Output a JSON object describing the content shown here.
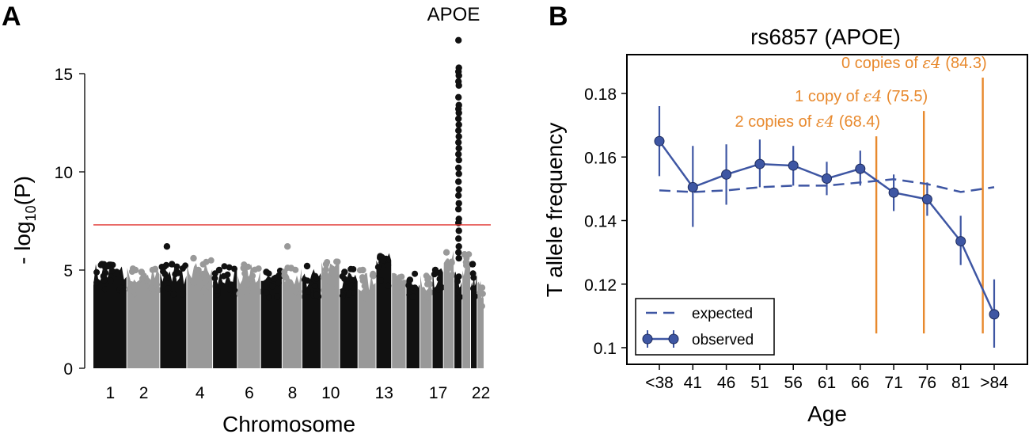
{
  "panels": {
    "a": {
      "letter": "A"
    },
    "b": {
      "letter": "B"
    }
  },
  "chart_data": [
    {
      "type": "scatter",
      "panel": "A",
      "title": "",
      "xlabel": "Chromosome",
      "ylabel": "- log10(P)",
      "ylabel_parts": {
        "prefix": "- log",
        "sub": "10",
        "suffix": "(P)"
      },
      "ylim": [
        0,
        17
      ],
      "yticks": [
        0,
        5,
        10,
        15
      ],
      "xtick_labels": [
        "1",
        "2",
        "4",
        "6",
        "8",
        "10",
        "13",
        "17",
        "22"
      ],
      "significance_threshold": 7.3,
      "colors": {
        "odd": "#111111",
        "even": "#999999",
        "threshold": "#e0322f"
      },
      "chromosomes": [
        {
          "chr": 1,
          "max": 5.4,
          "extra": [
            5.3,
            5.2
          ]
        },
        {
          "chr": 2,
          "max": 5.2,
          "extra": [
            5.0,
            4.9
          ]
        },
        {
          "chr": 3,
          "max": 5.3,
          "extra": [
            6.2,
            5.3,
            4.9
          ]
        },
        {
          "chr": 4,
          "max": 5.5,
          "extra": [
            5.6,
            5.0,
            4.8
          ]
        },
        {
          "chr": 5,
          "max": 5.2,
          "extra": [
            5.0
          ]
        },
        {
          "chr": 6,
          "max": 5.4,
          "extra": [
            5.1
          ]
        },
        {
          "chr": 7,
          "max": 5.0,
          "extra": [
            4.9
          ]
        },
        {
          "chr": 8,
          "max": 5.2,
          "extra": [
            6.2,
            5.1
          ]
        },
        {
          "chr": 9,
          "max": 5.1,
          "extra": [
            5.2
          ]
        },
        {
          "chr": 10,
          "max": 5.5,
          "extra": [
            5.3
          ]
        },
        {
          "chr": 11,
          "max": 5.1,
          "extra": [
            4.9
          ]
        },
        {
          "chr": 12,
          "max": 5.0,
          "extra": [
            5.0
          ]
        },
        {
          "chr": 13,
          "max": 5.9,
          "extra": [
            5.7,
            5.5
          ]
        },
        {
          "chr": 14,
          "max": 5.0,
          "extra": []
        },
        {
          "chr": 15,
          "max": 5.0,
          "extra": [
            4.5
          ]
        },
        {
          "chr": 16,
          "max": 4.9,
          "extra": []
        },
        {
          "chr": 17,
          "max": 5.2,
          "extra": [
            5.0
          ]
        },
        {
          "chr": 18,
          "max": 6.0,
          "extra": [
            5.9,
            5.1
          ]
        },
        {
          "chr": 19,
          "max": 5.0,
          "extra": [
            16.7,
            15.3,
            15.1,
            14.9,
            14.6,
            14.4,
            13.8,
            13.4,
            13.2,
            13.0,
            12.7,
            12.4,
            12.1,
            11.8,
            11.5,
            11.2,
            10.9,
            10.6,
            10.2,
            9.9,
            9.5,
            9.1,
            8.8,
            8.4,
            8.1,
            7.6,
            7.4,
            7.0,
            6.6,
            6.2,
            5.9,
            5.6
          ]
        },
        {
          "chr": 20,
          "max": 5.9,
          "extra": [
            5.8,
            5.4
          ]
        },
        {
          "chr": 21,
          "max": 5.2,
          "extra": [
            5.3
          ]
        },
        {
          "chr": 22,
          "max": 4.5,
          "extra": []
        }
      ],
      "annotation": "APOE"
    },
    {
      "type": "line",
      "panel": "B",
      "title": "rs6857 (APOE)",
      "xlabel": "Age",
      "ylabel": "T allele frequency",
      "categories": [
        "<38",
        "41",
        "46",
        "51",
        "56",
        "61",
        "66",
        "71",
        "76",
        "81",
        ">84"
      ],
      "ylim": [
        0.097,
        0.193
      ],
      "yticks": [
        "0.1",
        "0.12",
        "0.14",
        "0.16",
        "0.18"
      ],
      "yticks_values": [
        0.1,
        0.12,
        0.14,
        0.16,
        0.18
      ],
      "series": [
        {
          "name": "expected",
          "style": "dashed",
          "color": "#3e56a3",
          "values": [
            0.1495,
            0.149,
            0.1495,
            0.1505,
            0.151,
            0.151,
            0.152,
            0.153,
            0.1515,
            0.149,
            0.1505
          ]
        },
        {
          "name": "observed",
          "style": "solid-markers",
          "color": "#3e56a3",
          "values": [
            0.165,
            0.1505,
            0.1545,
            0.1578,
            0.1573,
            0.1532,
            0.1563,
            0.1488,
            0.1467,
            0.1335,
            0.1105
          ],
          "err_low": [
            0.154,
            0.138,
            0.145,
            0.1505,
            0.151,
            0.148,
            0.151,
            0.143,
            0.1415,
            0.126,
            0.1
          ],
          "err_high": [
            0.176,
            0.1635,
            0.164,
            0.1655,
            0.1635,
            0.1585,
            0.162,
            0.1545,
            0.152,
            0.1415,
            0.1215
          ]
        }
      ],
      "reference_lines": {
        "color": "#e8892d",
        "lines": [
          {
            "age": 68.4,
            "label_pre": "2 copies of ",
            "epsilon": "ε4",
            "label_post": " (68.4)",
            "top_value": 0.1665
          },
          {
            "age": 75.5,
            "label_pre": "1 copy of ",
            "epsilon": "ε4",
            "label_post": " (75.5)",
            "top_value": 0.1745
          },
          {
            "age": 84.3,
            "label_pre": "0 copies of ",
            "epsilon": "ε4",
            "label_post": " (84.3)",
            "top_value": 0.185
          }
        ],
        "bottom_value": 0.1045
      },
      "legend": {
        "placement": "bottom-left",
        "entries": [
          "expected",
          "observed"
        ]
      }
    }
  ]
}
